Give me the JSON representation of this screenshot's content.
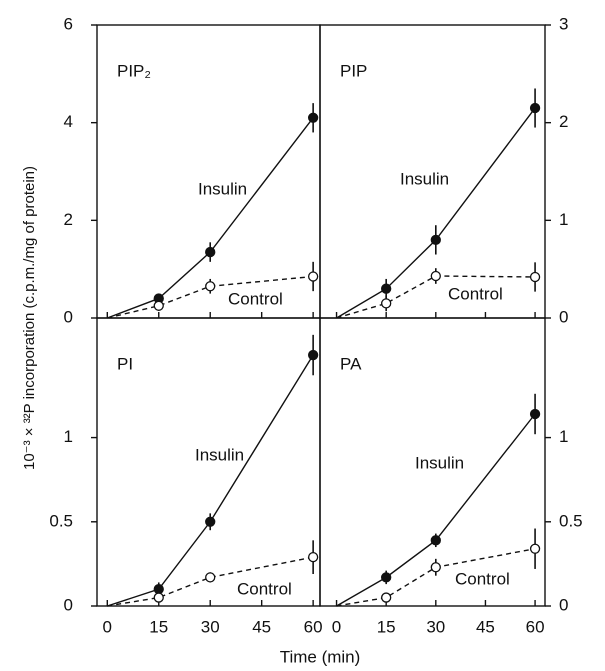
{
  "xlabel": "Time (min)",
  "ylabel": "10⁻³ × ³²P incorporation (c.p.m./mg of protein)",
  "chart_data": [
    {
      "type": "line",
      "title": "PIP₂",
      "y_axis_side": "left",
      "x": [
        0,
        15,
        30,
        60
      ],
      "xlim": [
        -3,
        62
      ],
      "xticks": [
        0,
        15,
        30,
        45,
        60
      ],
      "ylim": [
        0,
        6
      ],
      "yticks": [
        0,
        2,
        4,
        6
      ],
      "series": [
        {
          "name": "Insulin",
          "color": "#111111",
          "dashed": false,
          "marker": "filled",
          "values": [
            0,
            0.4,
            1.35,
            4.1
          ],
          "errors": [
            0,
            0.1,
            0.2,
            0.3
          ]
        },
        {
          "name": "Control",
          "color": "#111111",
          "dashed": true,
          "marker": "open",
          "values": [
            0,
            0.25,
            0.65,
            0.85
          ],
          "errors": [
            0,
            0.1,
            0.15,
            0.3
          ]
        }
      ]
    },
    {
      "type": "line",
      "title": "PIP",
      "y_axis_side": "right",
      "x": [
        0,
        15,
        30,
        60
      ],
      "xlim": [
        -5,
        63
      ],
      "xticks": [
        0,
        15,
        30,
        45,
        60
      ],
      "ylim": [
        0,
        3
      ],
      "yticks": [
        0,
        1,
        2,
        3
      ],
      "series": [
        {
          "name": "Insulin",
          "color": "#111111",
          "dashed": false,
          "marker": "filled",
          "values": [
            0,
            0.3,
            0.8,
            2.15
          ],
          "errors": [
            0,
            0.1,
            0.15,
            0.2
          ]
        },
        {
          "name": "Control",
          "color": "#111111",
          "dashed": true,
          "marker": "open",
          "values": [
            0,
            0.15,
            0.43,
            0.42
          ],
          "errors": [
            0,
            0.08,
            0.08,
            0.15
          ]
        }
      ]
    },
    {
      "type": "line",
      "title": "PI",
      "y_axis_side": "left",
      "x": [
        0,
        15,
        30,
        60
      ],
      "xlim": [
        -3,
        62
      ],
      "xticks": [
        0,
        15,
        30,
        45,
        60
      ],
      "ylim": [
        0,
        1.71
      ],
      "yticks": [
        0,
        0.5,
        1
      ],
      "series": [
        {
          "name": "Insulin",
          "color": "#111111",
          "dashed": false,
          "marker": "filled",
          "values": [
            0,
            0.1,
            0.5,
            1.49
          ],
          "errors": [
            0,
            0.04,
            0.05,
            0.12
          ]
        },
        {
          "name": "Control",
          "color": "#111111",
          "dashed": true,
          "marker": "open",
          "values": [
            0,
            0.05,
            0.17,
            0.29
          ],
          "errors": [
            0,
            0.03,
            0.03,
            0.1
          ]
        }
      ]
    },
    {
      "type": "line",
      "title": "PA",
      "y_axis_side": "right",
      "x": [
        0,
        15,
        30,
        60
      ],
      "xlim": [
        -5,
        63
      ],
      "xticks": [
        0,
        15,
        30,
        45,
        60
      ],
      "ylim": [
        0,
        1.71
      ],
      "yticks": [
        0,
        0.5,
        1
      ],
      "series": [
        {
          "name": "Insulin",
          "color": "#111111",
          "dashed": false,
          "marker": "filled",
          "values": [
            0,
            0.17,
            0.39,
            1.14
          ],
          "errors": [
            0,
            0.04,
            0.04,
            0.12
          ]
        },
        {
          "name": "Control",
          "color": "#111111",
          "dashed": true,
          "marker": "open",
          "values": [
            0,
            0.05,
            0.23,
            0.34
          ],
          "errors": [
            0,
            0.03,
            0.05,
            0.12
          ]
        }
      ]
    }
  ]
}
